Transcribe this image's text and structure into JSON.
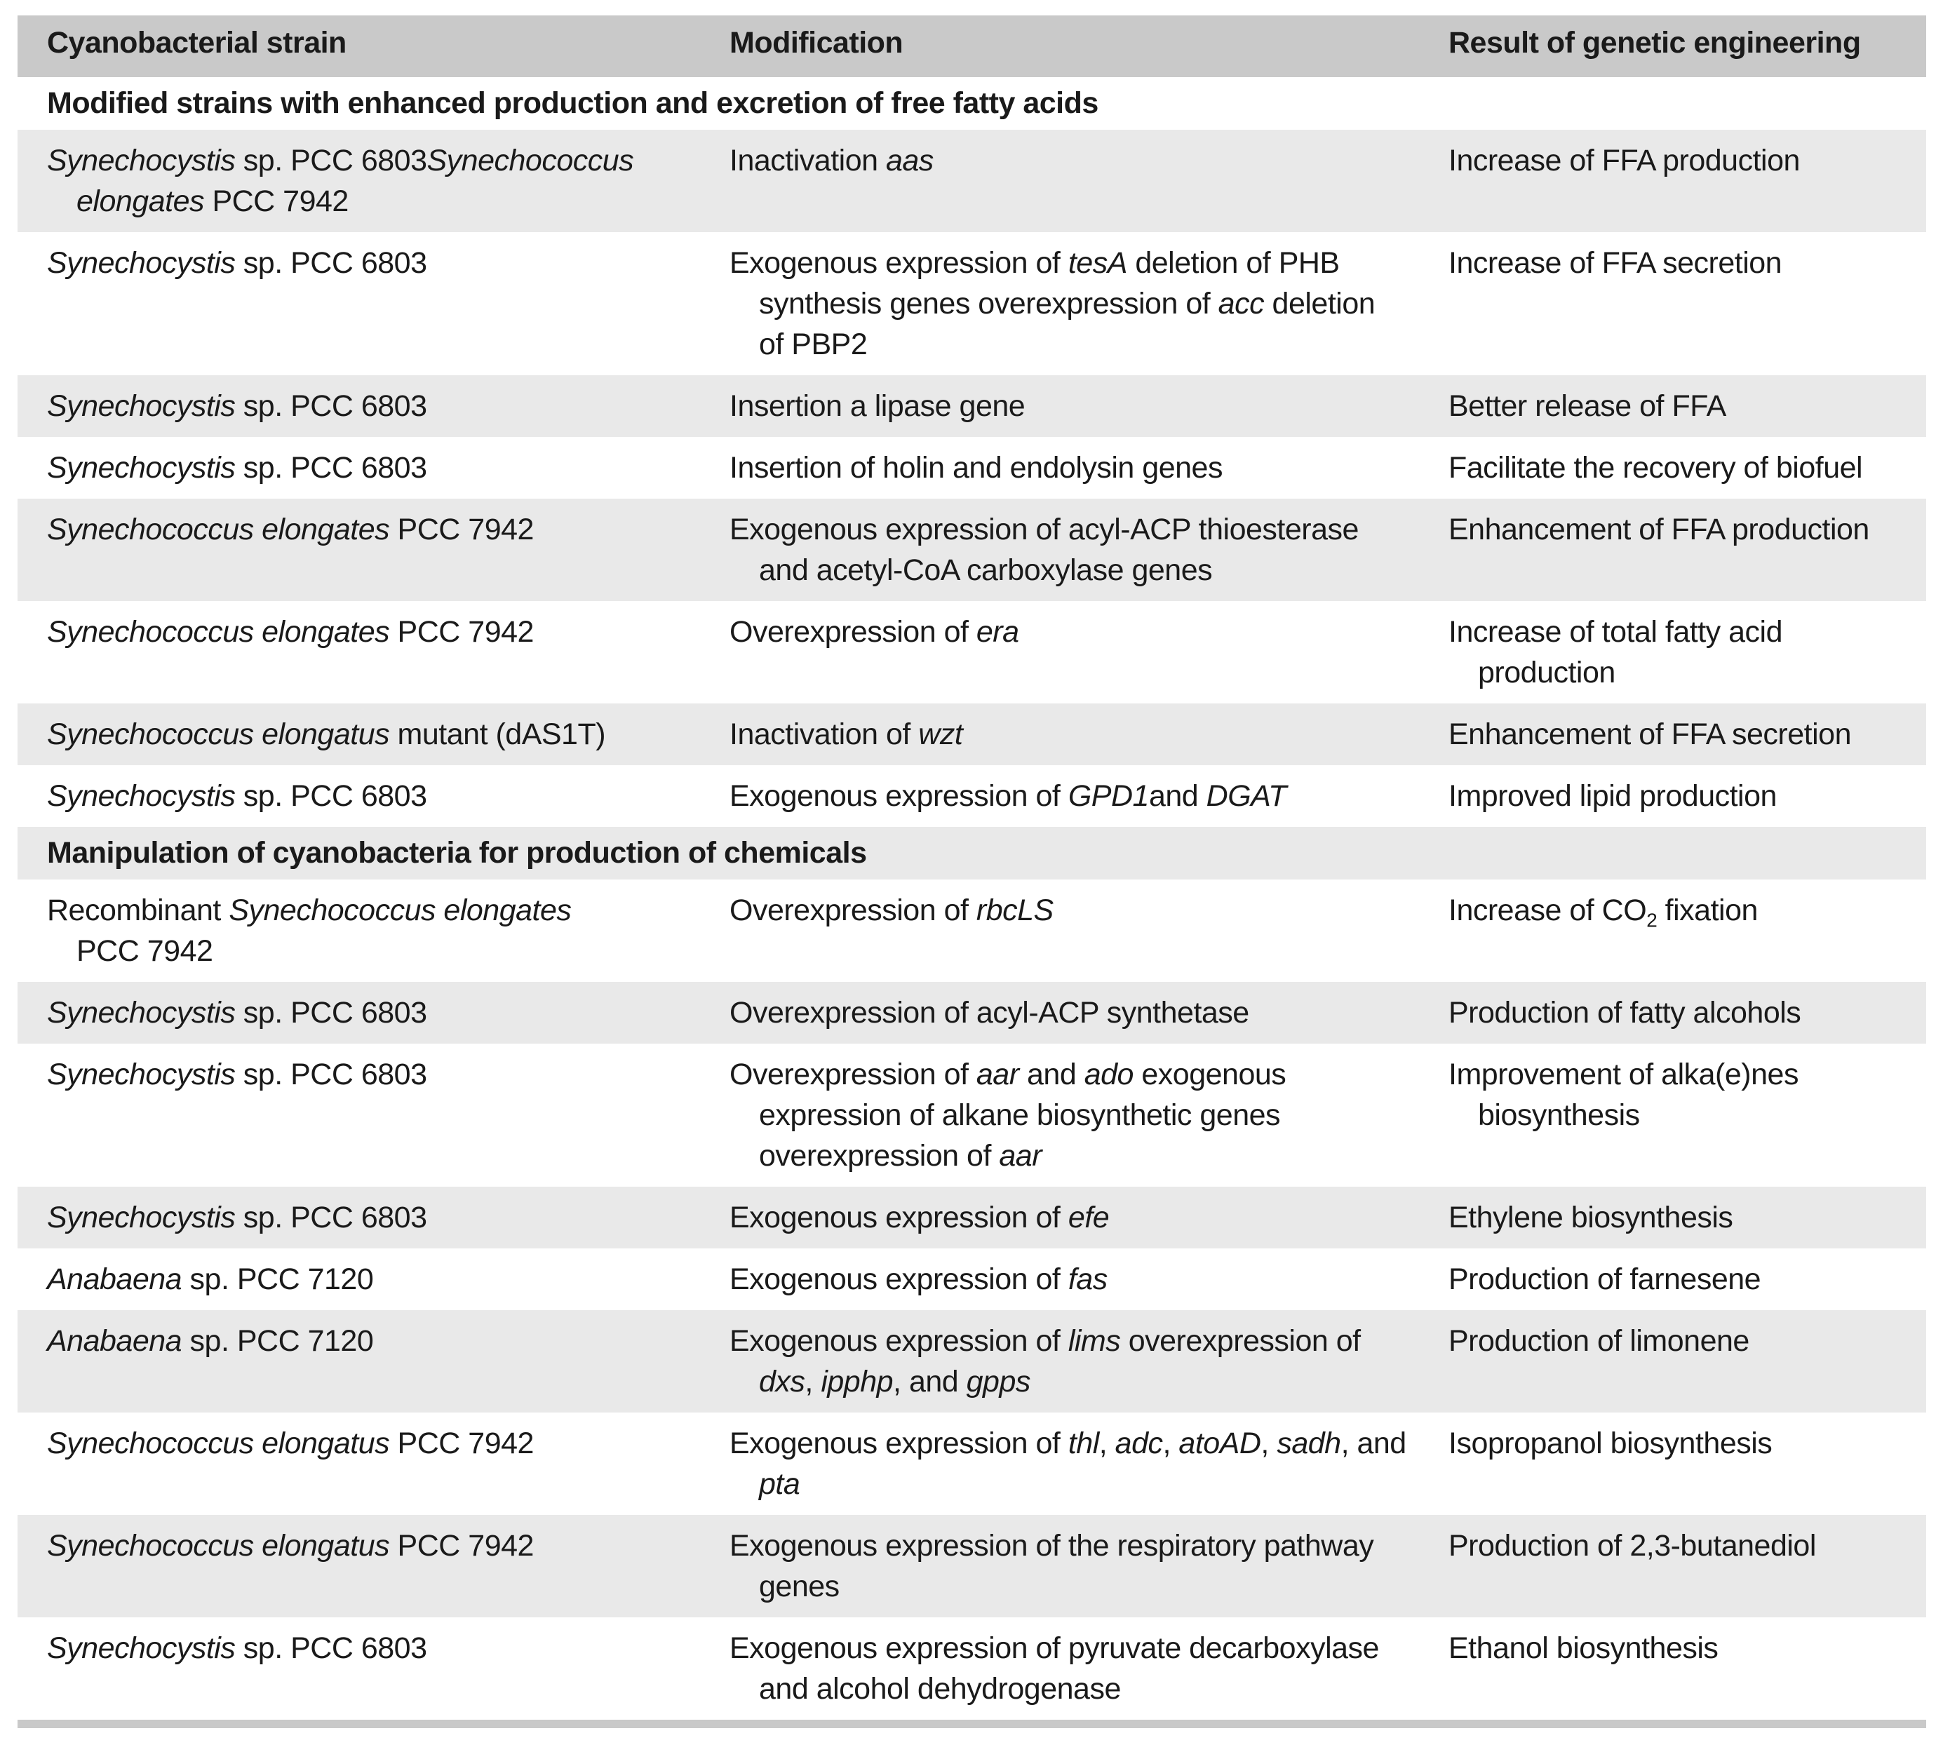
{
  "colors": {
    "header_bg": "#c9c9c9",
    "shaded_row_bg": "#e9e9e9",
    "plain_row_bg": "#ffffff",
    "text": "#1a1a1a",
    "bottom_bar": "#c9c9c9"
  },
  "table": {
    "columns": [
      "Cyanobacterial strain",
      "Modification",
      "Result of genetic engineering"
    ],
    "rows": [
      {
        "type": "section",
        "shaded": false,
        "text": "Modified strains with enhanced production and excretion of free fatty acids"
      },
      {
        "type": "data",
        "shaded": true,
        "strain": [
          [
            {
              "t": "Synechocystis",
              "s": "i"
            },
            {
              "t": " sp. PCC 6803"
            },
            {
              "t": "Synechococcus",
              "s": "i"
            }
          ],
          [
            {
              "t": "elongates",
              "s": "i"
            },
            {
              "t": " PCC 7942"
            }
          ]
        ],
        "modification": [
          [
            {
              "t": "Inactivation "
            },
            {
              "t": "aas",
              "s": "i"
            }
          ]
        ],
        "result": [
          [
            {
              "t": "Increase of FFA production"
            }
          ]
        ]
      },
      {
        "type": "data",
        "shaded": false,
        "strain": [
          [
            {
              "t": "Synechocystis",
              "s": "i"
            },
            {
              "t": " sp. PCC 6803"
            }
          ]
        ],
        "modification": [
          [
            {
              "t": "Exogenous expression of "
            },
            {
              "t": "tesA",
              "s": "i"
            },
            {
              "t": " deletion of PHB"
            }
          ],
          [
            {
              "t": "synthesis genes overexpression of "
            },
            {
              "t": "acc",
              "s": "i"
            },
            {
              "t": " deletion"
            }
          ],
          [
            {
              "t": "of PBP2"
            }
          ]
        ],
        "result": [
          [
            {
              "t": "Increase of FFA secretion"
            }
          ]
        ]
      },
      {
        "type": "data",
        "shaded": true,
        "strain": [
          [
            {
              "t": "Synechocystis",
              "s": "i"
            },
            {
              "t": " sp. PCC 6803"
            }
          ]
        ],
        "modification": [
          [
            {
              "t": "Insertion a lipase gene"
            }
          ]
        ],
        "result": [
          [
            {
              "t": "Better release of FFA"
            }
          ]
        ]
      },
      {
        "type": "data",
        "shaded": false,
        "strain": [
          [
            {
              "t": "Synechocystis",
              "s": "i"
            },
            {
              "t": " sp. PCC 6803"
            }
          ]
        ],
        "modification": [
          [
            {
              "t": "Insertion of holin and endolysin genes"
            }
          ]
        ],
        "result": [
          [
            {
              "t": "Facilitate the recovery of biofuel"
            }
          ]
        ]
      },
      {
        "type": "data",
        "shaded": true,
        "strain": [
          [
            {
              "t": "Synechococcus elongates",
              "s": "i"
            },
            {
              "t": " PCC 7942"
            }
          ]
        ],
        "modification": [
          [
            {
              "t": "Exogenous expression of acyl-ACP thioesterase"
            }
          ],
          [
            {
              "t": "and acetyl-CoA carboxylase genes"
            }
          ]
        ],
        "result": [
          [
            {
              "t": "Enhancement of FFA production"
            }
          ]
        ]
      },
      {
        "type": "data",
        "shaded": false,
        "strain": [
          [
            {
              "t": "Synechococcus elongates",
              "s": "i"
            },
            {
              "t": " PCC 7942"
            }
          ]
        ],
        "modification": [
          [
            {
              "t": "Overexpression of "
            },
            {
              "t": "era",
              "s": "i"
            }
          ]
        ],
        "result": [
          [
            {
              "t": "Increase of total fatty acid"
            }
          ],
          [
            {
              "t": "production"
            }
          ]
        ]
      },
      {
        "type": "data",
        "shaded": true,
        "strain": [
          [
            {
              "t": "Synechococcus elongatus",
              "s": "i"
            },
            {
              "t": " mutant (dAS1T)"
            }
          ]
        ],
        "modification": [
          [
            {
              "t": "Inactivation of "
            },
            {
              "t": "wzt",
              "s": "i"
            }
          ]
        ],
        "result": [
          [
            {
              "t": "Enhancement of FFA secretion"
            }
          ]
        ]
      },
      {
        "type": "data",
        "shaded": false,
        "strain": [
          [
            {
              "t": "Synechocystis",
              "s": "i"
            },
            {
              "t": " sp. PCC 6803"
            }
          ]
        ],
        "modification": [
          [
            {
              "t": "Exogenous expression of "
            },
            {
              "t": "GPD1",
              "s": "i"
            },
            {
              "t": "and "
            },
            {
              "t": "DGAT",
              "s": "i"
            }
          ]
        ],
        "result": [
          [
            {
              "t": "Improved lipid production"
            }
          ]
        ]
      },
      {
        "type": "section",
        "shaded": true,
        "text": "Manipulation of cyanobacteria for production of chemicals"
      },
      {
        "type": "data",
        "shaded": false,
        "strain": [
          [
            {
              "t": "Recombinant "
            },
            {
              "t": "Synechococcus elongates",
              "s": "i"
            }
          ],
          [
            {
              "t": "PCC 7942"
            }
          ]
        ],
        "modification": [
          [
            {
              "t": "Overexpression of "
            },
            {
              "t": "rbcLS",
              "s": "i"
            }
          ]
        ],
        "result": [
          [
            {
              "t": "Increase of CO"
            },
            {
              "t": "2",
              "s": "sub"
            },
            {
              "t": " fixation"
            }
          ]
        ]
      },
      {
        "type": "data",
        "shaded": true,
        "strain": [
          [
            {
              "t": "Synechocystis",
              "s": "i"
            },
            {
              "t": " sp. PCC 6803"
            }
          ]
        ],
        "modification": [
          [
            {
              "t": "Overexpression of acyl-ACP synthetase"
            }
          ]
        ],
        "result": [
          [
            {
              "t": "Production of fatty alcohols"
            }
          ]
        ]
      },
      {
        "type": "data",
        "shaded": false,
        "strain": [
          [
            {
              "t": "Synechocystis",
              "s": "i"
            },
            {
              "t": " sp. PCC 6803"
            }
          ]
        ],
        "modification": [
          [
            {
              "t": "Overexpression of "
            },
            {
              "t": "aar",
              "s": "i"
            },
            {
              "t": " and "
            },
            {
              "t": "ado",
              "s": "i"
            },
            {
              "t": " exogenous"
            }
          ],
          [
            {
              "t": "expression of alkane biosynthetic genes"
            }
          ],
          [
            {
              "t": "overexpression of "
            },
            {
              "t": "aar",
              "s": "i"
            }
          ]
        ],
        "result": [
          [
            {
              "t": "Improvement of alka(e)nes"
            }
          ],
          [
            {
              "t": "biosynthesis"
            }
          ]
        ]
      },
      {
        "type": "data",
        "shaded": true,
        "strain": [
          [
            {
              "t": "Synechocystis",
              "s": "i"
            },
            {
              "t": " sp. PCC 6803"
            }
          ]
        ],
        "modification": [
          [
            {
              "t": "Exogenous expression of "
            },
            {
              "t": "efe",
              "s": "i"
            }
          ]
        ],
        "result": [
          [
            {
              "t": "Ethylene biosynthesis"
            }
          ]
        ]
      },
      {
        "type": "data",
        "shaded": false,
        "strain": [
          [
            {
              "t": "Anabaena",
              "s": "i"
            },
            {
              "t": " sp. PCC 7120"
            }
          ]
        ],
        "modification": [
          [
            {
              "t": "Exogenous expression of "
            },
            {
              "t": "fas",
              "s": "i"
            }
          ]
        ],
        "result": [
          [
            {
              "t": "Production of farnesene"
            }
          ]
        ]
      },
      {
        "type": "data",
        "shaded": true,
        "strain": [
          [
            {
              "t": "Anabaena",
              "s": "i"
            },
            {
              "t": " sp. PCC 7120"
            }
          ]
        ],
        "modification": [
          [
            {
              "t": "Exogenous expression of "
            },
            {
              "t": "lims",
              "s": "i"
            },
            {
              "t": " overexpression of"
            }
          ],
          [
            {
              "t": "dxs",
              "s": "i"
            },
            {
              "t": ", "
            },
            {
              "t": "ipphp",
              "s": "i"
            },
            {
              "t": ", and "
            },
            {
              "t": "gpps",
              "s": "i"
            }
          ]
        ],
        "result": [
          [
            {
              "t": "Production of limonene"
            }
          ]
        ]
      },
      {
        "type": "data",
        "shaded": false,
        "strain": [
          [
            {
              "t": "Synechococcus elongatus",
              "s": "i"
            },
            {
              "t": " PCC 7942"
            }
          ]
        ],
        "modification": [
          [
            {
              "t": "Exogenous expression of "
            },
            {
              "t": "thl",
              "s": "i"
            },
            {
              "t": ", "
            },
            {
              "t": "adc",
              "s": "i"
            },
            {
              "t": ", "
            },
            {
              "t": "atoAD",
              "s": "i"
            },
            {
              "t": ", "
            },
            {
              "t": "sadh",
              "s": "i"
            },
            {
              "t": ", and"
            }
          ],
          [
            {
              "t": "pta",
              "s": "i"
            }
          ]
        ],
        "result": [
          [
            {
              "t": "Isopropanol biosynthesis"
            }
          ]
        ]
      },
      {
        "type": "data",
        "shaded": true,
        "strain": [
          [
            {
              "t": "Synechococcus elongatus",
              "s": "i"
            },
            {
              "t": " PCC 7942"
            }
          ]
        ],
        "modification": [
          [
            {
              "t": "Exogenous expression of the respiratory pathway"
            }
          ],
          [
            {
              "t": "genes"
            }
          ]
        ],
        "result": [
          [
            {
              "t": "Production of 2,3-butanediol"
            }
          ]
        ]
      },
      {
        "type": "data",
        "shaded": false,
        "strain": [
          [
            {
              "t": "Synechocystis",
              "s": "i"
            },
            {
              "t": " sp. PCC 6803"
            }
          ]
        ],
        "modification": [
          [
            {
              "t": "Exogenous expression of pyruvate decarboxylase"
            }
          ],
          [
            {
              "t": "and alcohol dehydrogenase"
            }
          ]
        ],
        "result": [
          [
            {
              "t": "Ethanol biosynthesis"
            }
          ]
        ]
      }
    ]
  }
}
